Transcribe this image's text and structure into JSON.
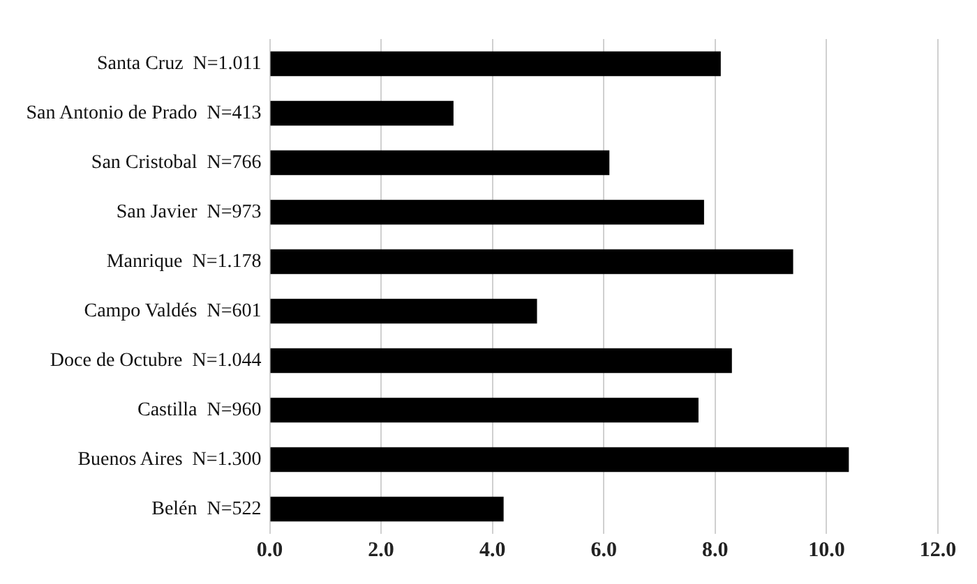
{
  "chart_data": {
    "type": "bar",
    "orientation": "horizontal",
    "categories": [
      "Santa Cruz  N=1.011",
      "San Antonio de Prado  N=413",
      "San Cristobal  N=766",
      "San Javier  N=973",
      "Manrique  N=1.178",
      "Campo Valdés  N=601",
      "Doce de Octubre  N=1.044",
      "Castilla  N=960",
      "Buenos Aires  N=1.300",
      "Belén  N=522"
    ],
    "values": [
      8.1,
      3.3,
      6.1,
      7.8,
      9.4,
      4.8,
      8.3,
      7.7,
      10.4,
      4.2
    ],
    "color": "#000000",
    "xlim": [
      0,
      12
    ],
    "xticks": [
      {
        "value": 0,
        "label": "0.0"
      },
      {
        "value": 2,
        "label": "2.0"
      },
      {
        "value": 4,
        "label": "4.0"
      },
      {
        "value": 6,
        "label": "6.0"
      },
      {
        "value": 8,
        "label": "8.0"
      },
      {
        "value": 10,
        "label": "10.0"
      },
      {
        "value": 12,
        "label": "12.0"
      }
    ],
    "grid": "x",
    "legend": false
  }
}
